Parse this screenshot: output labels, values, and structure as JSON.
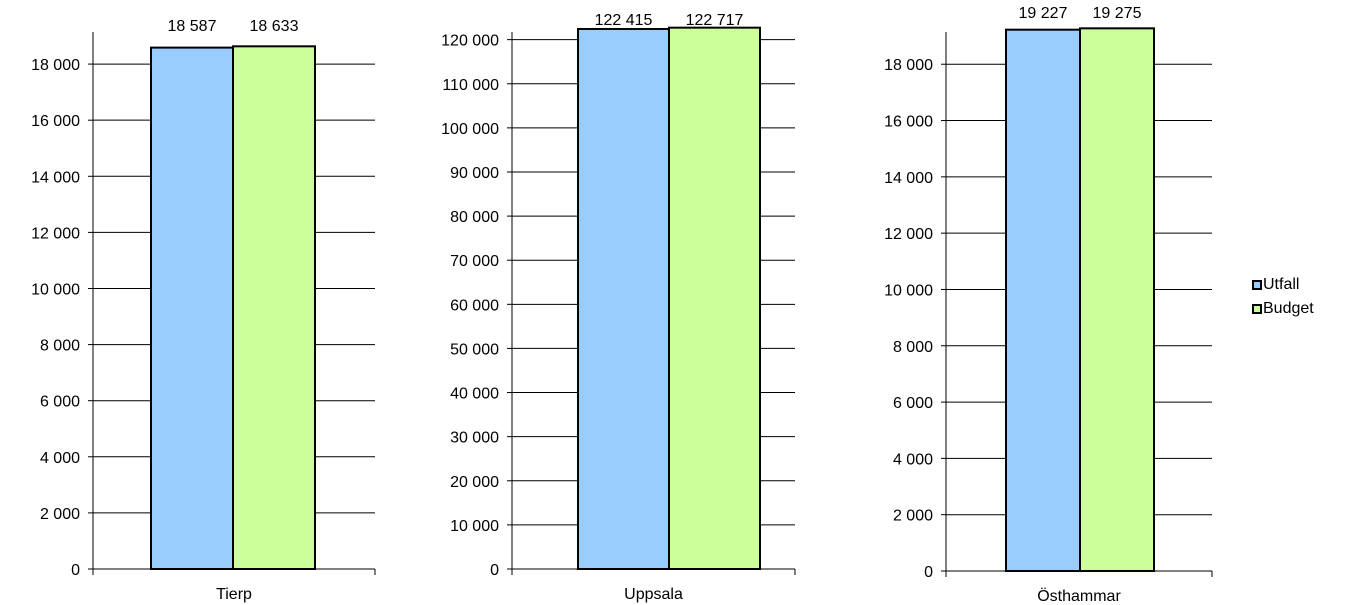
{
  "chart_data": [
    {
      "type": "bar",
      "categories": [
        "Tierp"
      ],
      "series": [
        {
          "name": "Utfall",
          "values": [
            18587
          ]
        },
        {
          "name": "Budget",
          "values": [
            18633
          ]
        }
      ],
      "data_labels": [
        "18 587",
        "18 633"
      ],
      "yticks": [
        0,
        2000,
        4000,
        6000,
        8000,
        10000,
        12000,
        14000,
        16000,
        18000
      ],
      "ytick_labels": [
        "0",
        "2 000",
        "4 000",
        "6 000",
        "8 000",
        "10 000",
        "12 000",
        "14 000",
        "16 000",
        "18 000"
      ],
      "ylim": [
        0,
        19500
      ],
      "grid": true
    },
    {
      "type": "bar",
      "categories": [
        "Uppsala"
      ],
      "series": [
        {
          "name": "Utfall",
          "values": [
            122415
          ]
        },
        {
          "name": "Budget",
          "values": [
            122717
          ]
        }
      ],
      "data_labels": [
        "122 415",
        "122 717"
      ],
      "yticks": [
        0,
        10000,
        20000,
        30000,
        40000,
        50000,
        60000,
        70000,
        80000,
        90000,
        100000,
        110000,
        120000
      ],
      "ytick_labels": [
        "0",
        "10 000",
        "20 000",
        "30 000",
        "40 000",
        "50 000",
        "60 000",
        "70 000",
        "80 000",
        "90 000",
        "100 000",
        "110 000",
        "120 000"
      ],
      "ylim": [
        0,
        124000
      ],
      "grid": true
    },
    {
      "type": "bar",
      "categories": [
        "Östhammar"
      ],
      "series": [
        {
          "name": "Utfall",
          "values": [
            19227
          ]
        },
        {
          "name": "Budget",
          "values": [
            19275
          ]
        }
      ],
      "data_labels": [
        "19 227",
        "19 275"
      ],
      "yticks": [
        0,
        2000,
        4000,
        6000,
        8000,
        10000,
        12000,
        14000,
        16000,
        18000
      ],
      "ytick_labels": [
        "0",
        "2 000",
        "4 000",
        "6 000",
        "8 000",
        "10 000",
        "12 000",
        "14 000",
        "16 000",
        "18 000"
      ],
      "ylim": [
        0,
        19500
      ],
      "grid": true
    }
  ],
  "legend": {
    "placement": "right",
    "items": [
      {
        "label": "Utfall",
        "color": "#99ccff"
      },
      {
        "label": "Budget",
        "color": "#ccff99"
      }
    ]
  }
}
